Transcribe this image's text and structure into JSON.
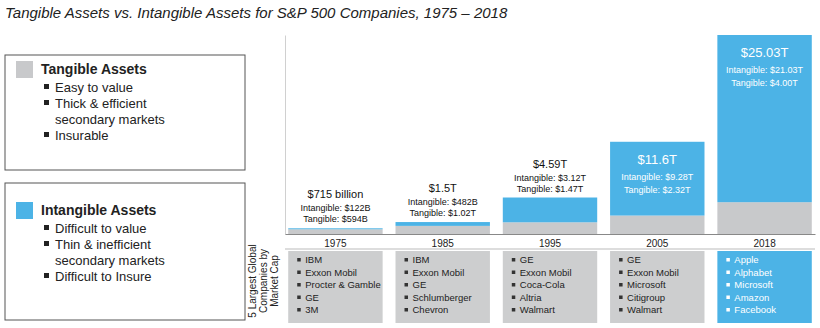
{
  "chart_data": {
    "type": "bar",
    "stacked": true,
    "data_labels": true,
    "tick_labels": "x",
    "title": "Tangible Assets vs. Intangible Assets for S&P 500 Companies, 1975 – 2018",
    "categories": [
      "1975",
      "1985",
      "1995",
      "2005",
      "2018"
    ],
    "ylim": [
      0,
      25.03
    ],
    "yticks": [],
    "series": [
      {
        "name": "Tangible Assets",
        "color": "#c8c9cb",
        "values": [
          0.594,
          1.02,
          1.47,
          2.32,
          4.0
        ],
        "value_labels": [
          "Tangible: $594B",
          "Tangible: $1.02T",
          "Tangible: $1.47T",
          "Tangible: $2.32T",
          "Tangible: $4.00T"
        ],
        "bullets": [
          [
            "Easy to value"
          ],
          [
            "Thick & efficient",
            "secondary markets"
          ],
          [
            "Insurable"
          ]
        ]
      },
      {
        "name": "Intangible Assets",
        "color": "#4cb3e6",
        "values": [
          0.122,
          0.482,
          3.12,
          9.28,
          21.03
        ],
        "value_labels": [
          "Intangible: $122B",
          "Intangible: $482B",
          "Intangible: $3.12T",
          "Intangible: $9.28T",
          "Intangible: $21.03T"
        ],
        "bullets": [
          [
            "Difficult to value"
          ],
          [
            "Thin & inefficient",
            "secondary markets"
          ],
          [
            "Difficult to Insure"
          ]
        ]
      }
    ],
    "totals": [
      0.715,
      1.5,
      4.59,
      11.6,
      25.03
    ],
    "total_labels": [
      "$715 billion",
      "$1.5T",
      "$4.59T",
      "$11.6T",
      "$25.03T"
    ],
    "companies_label": [
      "5 Largest Global",
      "Companies by",
      "Market Cap"
    ],
    "companies": [
      [
        "IBM",
        "Exxon Mobil",
        "Procter & Gamble",
        "GE",
        "3M"
      ],
      [
        "IBM",
        "Exxon Mobil",
        "GE",
        "Schlumberger",
        "Chevron"
      ],
      [
        "GE",
        "Exxon Mobil",
        "Coca-Cola",
        "Altria",
        "Walmart"
      ],
      [
        "GE",
        "Exxon Mobil",
        "Microsoft",
        "Citigroup",
        "Walmart"
      ],
      [
        "Apple",
        "Alphabet",
        "Microsoft",
        "Amazon",
        "Facebook"
      ]
    ]
  }
}
